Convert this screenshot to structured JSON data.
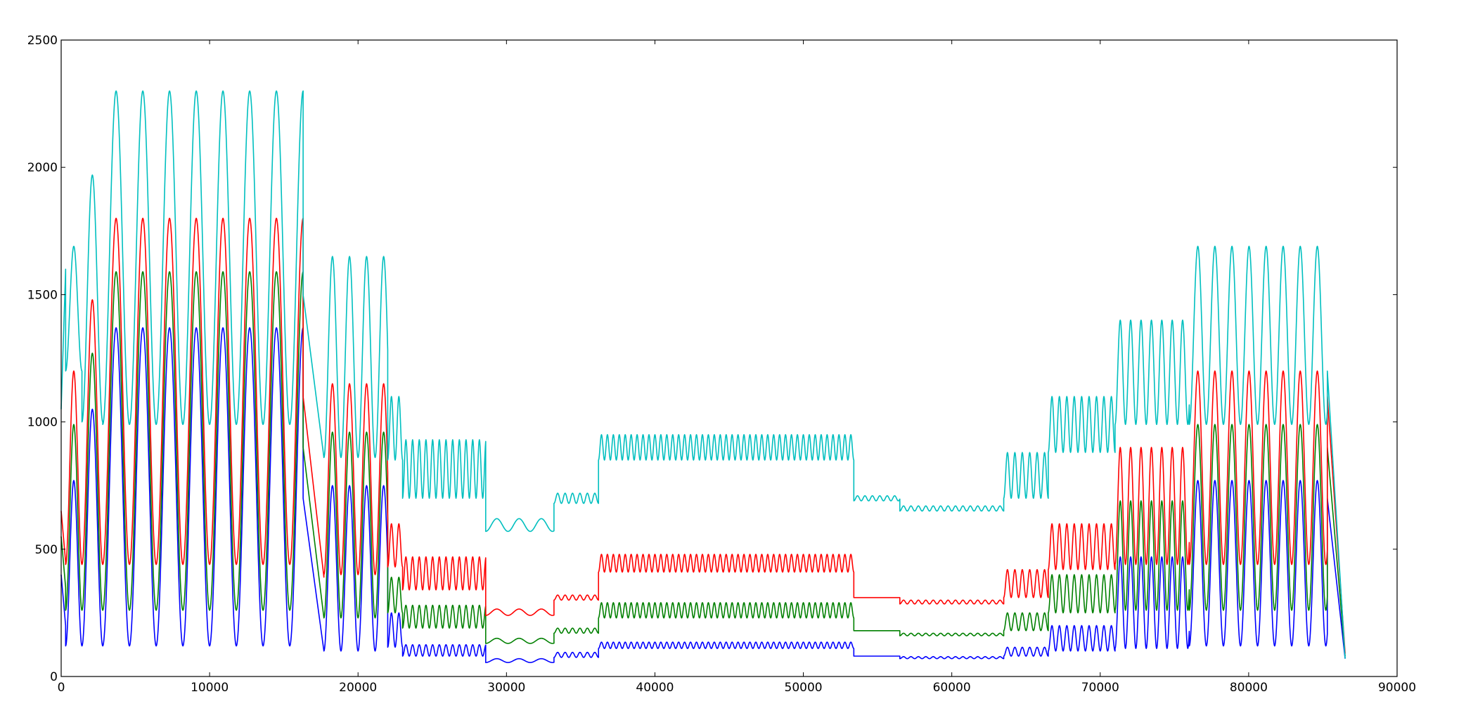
{
  "chart_data": {
    "type": "line",
    "title": "",
    "xlabel": "",
    "ylabel": "",
    "xlim": [
      0,
      90000
    ],
    "ylim": [
      0,
      2500
    ],
    "xticks": [
      "0",
      "10000",
      "20000",
      "30000",
      "40000",
      "50000",
      "60000",
      "70000",
      "80000",
      "90000"
    ],
    "yticks": [
      "0",
      "500",
      "1000",
      "1500",
      "2000",
      "2500"
    ],
    "grid": false,
    "legend": "none",
    "series": [
      {
        "color": "#0000ff",
        "segments": [
          {
            "x0": 0,
            "x1": 300,
            "type": "ramp",
            "a": 400,
            "b": 200
          },
          {
            "x0": 300,
            "x1": 1400,
            "type": "osc",
            "lo": 120,
            "hi": 770,
            "period": 1100
          },
          {
            "x0": 1400,
            "x1": 2800,
            "type": "osc",
            "lo": 120,
            "hi": 1050,
            "period": 1400
          },
          {
            "x0": 2800,
            "x1": 16300,
            "type": "osc",
            "lo": 120,
            "hi": 1370,
            "period": 1800
          },
          {
            "x0": 16300,
            "x1": 17700,
            "type": "ramp",
            "a": 700,
            "b": 100
          },
          {
            "x0": 17700,
            "x1": 22000,
            "type": "osc",
            "lo": 100,
            "hi": 750,
            "period": 1150
          },
          {
            "x0": 22000,
            "x1": 23000,
            "type": "osc",
            "lo": 115,
            "hi": 250,
            "period": 500
          },
          {
            "x0": 23000,
            "x1": 28600,
            "type": "osc",
            "lo": 80,
            "hi": 125,
            "period": 450
          },
          {
            "x0": 28600,
            "x1": 33200,
            "type": "osc",
            "lo": 55,
            "hi": 70,
            "period": 1500
          },
          {
            "x0": 33200,
            "x1": 36200,
            "type": "osc",
            "lo": 75,
            "hi": 95,
            "period": 500
          },
          {
            "x0": 36200,
            "x1": 53400,
            "type": "osc",
            "lo": 110,
            "hi": 135,
            "period": 400
          },
          {
            "x0": 53400,
            "x1": 56500,
            "type": "flat",
            "v": 80
          },
          {
            "x0": 56500,
            "x1": 63500,
            "type": "osc",
            "lo": 70,
            "hi": 78,
            "period": 500
          },
          {
            "x0": 63500,
            "x1": 66500,
            "type": "osc",
            "lo": 80,
            "hi": 115,
            "period": 500
          },
          {
            "x0": 66500,
            "x1": 71000,
            "type": "osc",
            "lo": 100,
            "hi": 200,
            "period": 500
          },
          {
            "x0": 71000,
            "x1": 76000,
            "type": "osc",
            "lo": 110,
            "hi": 470,
            "period": 700
          },
          {
            "x0": 76000,
            "x1": 85300,
            "type": "osc",
            "lo": 120,
            "hi": 770,
            "period": 1150
          },
          {
            "x0": 85300,
            "x1": 86500,
            "type": "ramp",
            "a": 700,
            "b": 70
          }
        ]
      },
      {
        "color": "#008000",
        "segments": [
          {
            "x0": 0,
            "x1": 300,
            "type": "ramp",
            "a": 550,
            "b": 350
          },
          {
            "x0": 300,
            "x1": 1400,
            "type": "osc",
            "lo": 260,
            "hi": 990,
            "period": 1100
          },
          {
            "x0": 1400,
            "x1": 2800,
            "type": "osc",
            "lo": 260,
            "hi": 1270,
            "period": 1400
          },
          {
            "x0": 2800,
            "x1": 16300,
            "type": "osc",
            "lo": 260,
            "hi": 1590,
            "period": 1800
          },
          {
            "x0": 16300,
            "x1": 17700,
            "type": "ramp",
            "a": 900,
            "b": 230
          },
          {
            "x0": 17700,
            "x1": 22000,
            "type": "osc",
            "lo": 230,
            "hi": 960,
            "period": 1150
          },
          {
            "x0": 22000,
            "x1": 23000,
            "type": "osc",
            "lo": 250,
            "hi": 390,
            "period": 500
          },
          {
            "x0": 23000,
            "x1": 28600,
            "type": "osc",
            "lo": 190,
            "hi": 280,
            "period": 450
          },
          {
            "x0": 28600,
            "x1": 33200,
            "type": "osc",
            "lo": 130,
            "hi": 150,
            "period": 1500
          },
          {
            "x0": 33200,
            "x1": 36200,
            "type": "osc",
            "lo": 170,
            "hi": 190,
            "period": 500
          },
          {
            "x0": 36200,
            "x1": 53400,
            "type": "osc",
            "lo": 230,
            "hi": 290,
            "period": 400
          },
          {
            "x0": 53400,
            "x1": 56500,
            "type": "flat",
            "v": 180
          },
          {
            "x0": 56500,
            "x1": 63500,
            "type": "osc",
            "lo": 160,
            "hi": 170,
            "period": 500
          },
          {
            "x0": 63500,
            "x1": 66500,
            "type": "osc",
            "lo": 180,
            "hi": 250,
            "period": 500
          },
          {
            "x0": 66500,
            "x1": 71000,
            "type": "osc",
            "lo": 250,
            "hi": 400,
            "period": 500
          },
          {
            "x0": 71000,
            "x1": 76000,
            "type": "osc",
            "lo": 260,
            "hi": 690,
            "period": 700
          },
          {
            "x0": 76000,
            "x1": 85300,
            "type": "osc",
            "lo": 260,
            "hi": 990,
            "period": 1150
          },
          {
            "x0": 85300,
            "x1": 86500,
            "type": "ramp",
            "a": 900,
            "b": 80
          }
        ]
      },
      {
        "color": "#ff0000",
        "segments": [
          {
            "x0": 0,
            "x1": 300,
            "type": "ramp",
            "a": 650,
            "b": 450
          },
          {
            "x0": 300,
            "x1": 1400,
            "type": "osc",
            "lo": 440,
            "hi": 1200,
            "period": 1100
          },
          {
            "x0": 1400,
            "x1": 2800,
            "type": "osc",
            "lo": 440,
            "hi": 1480,
            "period": 1400
          },
          {
            "x0": 2800,
            "x1": 16300,
            "type": "osc",
            "lo": 440,
            "hi": 1800,
            "period": 1800
          },
          {
            "x0": 16300,
            "x1": 17700,
            "type": "ramp",
            "a": 1100,
            "b": 390
          },
          {
            "x0": 17700,
            "x1": 22000,
            "type": "osc",
            "lo": 400,
            "hi": 1150,
            "period": 1150
          },
          {
            "x0": 22000,
            "x1": 23000,
            "type": "osc",
            "lo": 430,
            "hi": 600,
            "period": 500
          },
          {
            "x0": 23000,
            "x1": 28600,
            "type": "osc",
            "lo": 340,
            "hi": 470,
            "period": 450
          },
          {
            "x0": 28600,
            "x1": 33200,
            "type": "osc",
            "lo": 240,
            "hi": 265,
            "period": 1500
          },
          {
            "x0": 33200,
            "x1": 36200,
            "type": "osc",
            "lo": 300,
            "hi": 320,
            "period": 500
          },
          {
            "x0": 36200,
            "x1": 53400,
            "type": "osc",
            "lo": 410,
            "hi": 480,
            "period": 400
          },
          {
            "x0": 53400,
            "x1": 56500,
            "type": "flat",
            "v": 310
          },
          {
            "x0": 56500,
            "x1": 63500,
            "type": "osc",
            "lo": 285,
            "hi": 300,
            "period": 500
          },
          {
            "x0": 63500,
            "x1": 66500,
            "type": "osc",
            "lo": 310,
            "hi": 420,
            "period": 500
          },
          {
            "x0": 66500,
            "x1": 71000,
            "type": "osc",
            "lo": 420,
            "hi": 600,
            "period": 500
          },
          {
            "x0": 71000,
            "x1": 76000,
            "type": "osc",
            "lo": 440,
            "hi": 900,
            "period": 700
          },
          {
            "x0": 76000,
            "x1": 85300,
            "type": "osc",
            "lo": 440,
            "hi": 1200,
            "period": 1150
          },
          {
            "x0": 85300,
            "x1": 86500,
            "type": "ramp",
            "a": 1100,
            "b": 90
          }
        ]
      },
      {
        "color": "#00bfbf",
        "segments": [
          {
            "x0": 0,
            "x1": 300,
            "type": "ramp",
            "a": 1050,
            "b": 1600
          },
          {
            "x0": 300,
            "x1": 1400,
            "type": "osc",
            "lo": 1200,
            "hi": 1690,
            "period": 1100
          },
          {
            "x0": 1400,
            "x1": 2800,
            "type": "osc",
            "lo": 1000,
            "hi": 1970,
            "period": 1400
          },
          {
            "x0": 2800,
            "x1": 16300,
            "type": "osc",
            "lo": 990,
            "hi": 2300,
            "period": 1800
          },
          {
            "x0": 16300,
            "x1": 17700,
            "type": "ramp",
            "a": 1500,
            "b": 860
          },
          {
            "x0": 17700,
            "x1": 22000,
            "type": "osc",
            "lo": 860,
            "hi": 1650,
            "period": 1150
          },
          {
            "x0": 22000,
            "x1": 23000,
            "type": "osc",
            "lo": 850,
            "hi": 1100,
            "period": 500
          },
          {
            "x0": 23000,
            "x1": 28600,
            "type": "osc",
            "lo": 700,
            "hi": 930,
            "period": 450
          },
          {
            "x0": 28600,
            "x1": 33200,
            "type": "osc",
            "lo": 570,
            "hi": 620,
            "period": 1500
          },
          {
            "x0": 33200,
            "x1": 36200,
            "type": "osc",
            "lo": 680,
            "hi": 720,
            "period": 500
          },
          {
            "x0": 36200,
            "x1": 53400,
            "type": "osc",
            "lo": 850,
            "hi": 950,
            "period": 400
          },
          {
            "x0": 53400,
            "x1": 56500,
            "type": "osc",
            "lo": 690,
            "hi": 710,
            "period": 500
          },
          {
            "x0": 56500,
            "x1": 63500,
            "type": "osc",
            "lo": 650,
            "hi": 670,
            "period": 500
          },
          {
            "x0": 63500,
            "x1": 66500,
            "type": "osc",
            "lo": 700,
            "hi": 880,
            "period": 500
          },
          {
            "x0": 66500,
            "x1": 71000,
            "type": "osc",
            "lo": 880,
            "hi": 1100,
            "period": 500
          },
          {
            "x0": 71000,
            "x1": 76000,
            "type": "osc",
            "lo": 990,
            "hi": 1400,
            "period": 700
          },
          {
            "x0": 76000,
            "x1": 85300,
            "type": "osc",
            "lo": 990,
            "hi": 1690,
            "period": 1150
          },
          {
            "x0": 85300,
            "x1": 86500,
            "type": "ramp",
            "a": 1200,
            "b": 70
          }
        ]
      }
    ]
  }
}
